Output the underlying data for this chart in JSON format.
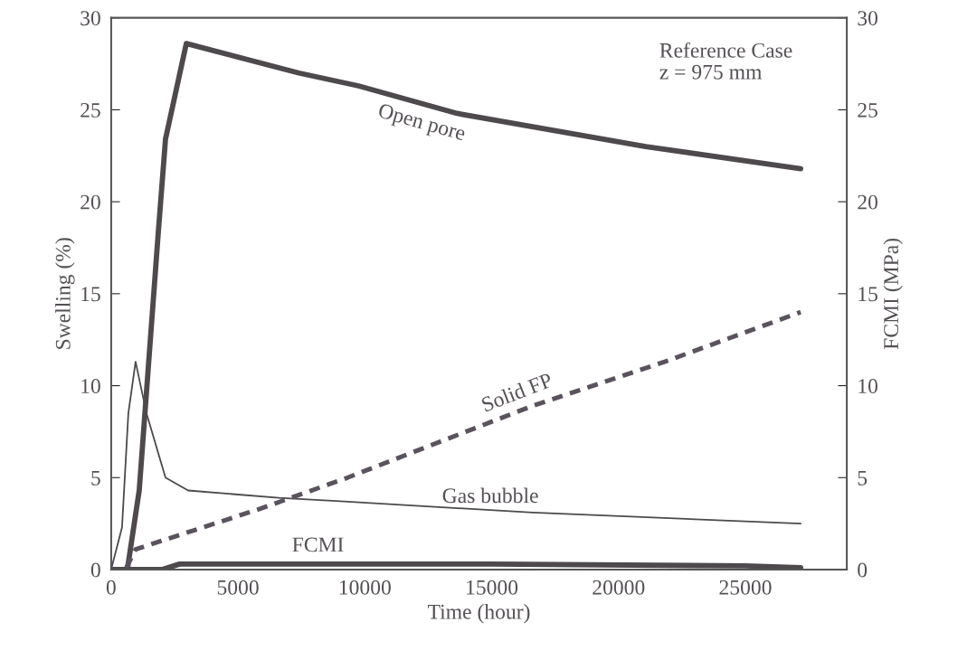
{
  "chart_data": {
    "type": "line",
    "xlabel": "Time (hour)",
    "ylabel": "Swelling (%)",
    "y2label": "FCMI (MPa)",
    "xlim": [
      0,
      29000
    ],
    "xticks": [
      0,
      5000,
      10000,
      15000,
      20000,
      25000
    ],
    "ylim": [
      0,
      30
    ],
    "yticks": [
      0,
      5,
      10,
      15,
      20,
      25,
      30
    ],
    "y2lim": [
      0,
      30
    ],
    "y2ticks": [
      0,
      5,
      10,
      15,
      20,
      25,
      30
    ],
    "grid": false,
    "legend": false,
    "marker": "none",
    "annotations": [
      "Reference Case\nz = 975 mm"
    ],
    "series": [
      {
        "name": "Open pore",
        "color": "#4d494d",
        "line_style": "solid",
        "x": [
          0,
          640,
          1107,
          1857,
          2143,
          2964,
          7400,
          9750,
          13643,
          21071,
          27179
        ],
        "values": [
          0,
          0,
          4.3,
          18.3,
          23.4,
          28.6,
          27.0,
          26.3,
          24.8,
          23.0,
          21.8
        ]
      },
      {
        "name": "Gas bubble",
        "color": "#4d494d",
        "line_style": "solid",
        "x": [
          0,
          430,
          679,
          964,
          1393,
          2143,
          3036,
          6607,
          9179,
          16607,
          27179
        ],
        "values": [
          0,
          2.3,
          8.5,
          11.3,
          8.5,
          5.0,
          4.3,
          3.9,
          3.7,
          3.1,
          2.5
        ]
      },
      {
        "name": "Solid FP",
        "color": "#5a535d",
        "line_style": "dashed",
        "x": [
          600,
          964,
          5857,
          9321,
          16607,
          21821,
          27179
        ],
        "values": [
          0.1,
          1.1,
          3.3,
          5.0,
          8.9,
          11.3,
          14.0
        ]
      },
      {
        "name": "FCMI",
        "color": "#4d494d",
        "line_style": "solid",
        "axis": "y2",
        "x": [
          0,
          2000,
          2700,
          15000,
          25000,
          27179
        ],
        "values": [
          0,
          0,
          0.3,
          0.3,
          0.2,
          0.1
        ]
      }
    ]
  }
}
